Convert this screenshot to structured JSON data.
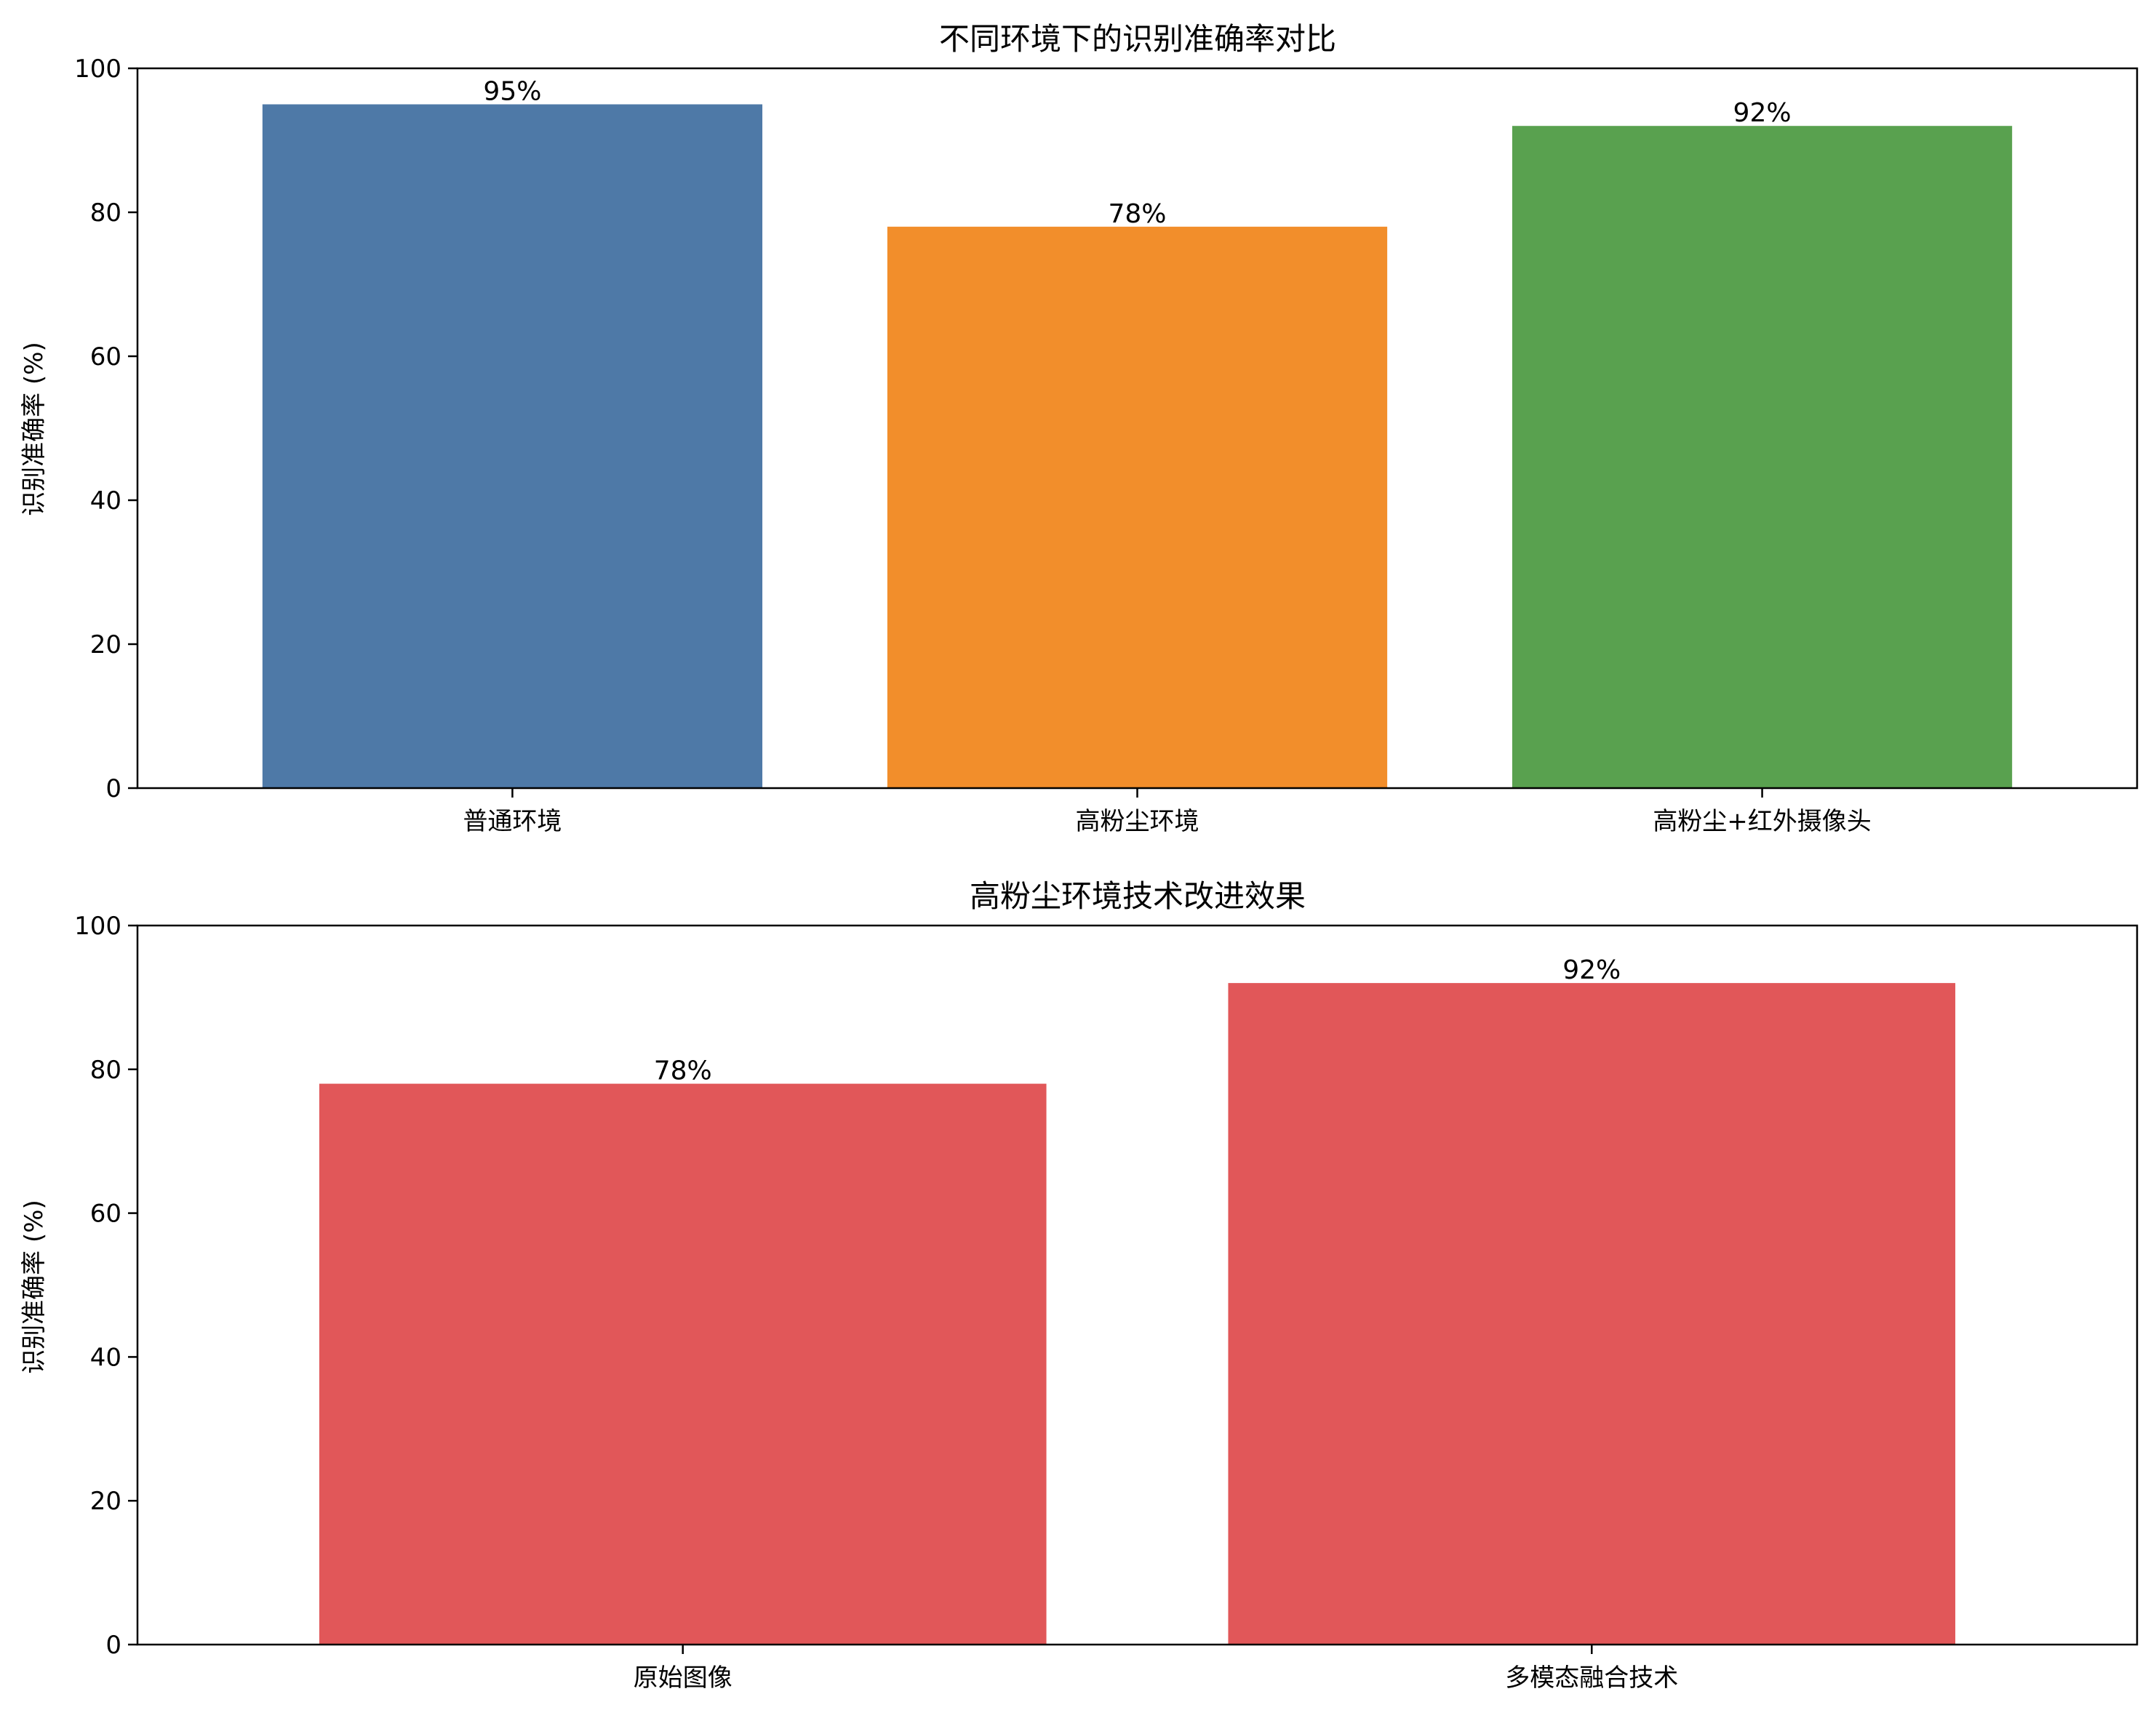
{
  "chart_data": [
    {
      "type": "bar",
      "title": "不同环境下的识别准确率对比",
      "xlabel": "",
      "ylabel": "识别准确率 (%)",
      "ylim": [
        0,
        100
      ],
      "yticks": [
        0,
        20,
        40,
        60,
        80,
        100
      ],
      "grid": false,
      "categories": [
        "普通环境",
        "高粉尘环境",
        "高粉尘+红外摄像头"
      ],
      "values": [
        95,
        78,
        92
      ],
      "value_labels": [
        "95%",
        "78%",
        "92%"
      ],
      "colors": [
        "#4e79a7",
        "#f28e2b",
        "#59a14f"
      ]
    },
    {
      "type": "bar",
      "title": "高粉尘环境技术改进效果",
      "xlabel": "",
      "ylabel": "识别准确率 (%)",
      "ylim": [
        0,
        100
      ],
      "yticks": [
        0,
        20,
        40,
        60,
        80,
        100
      ],
      "grid": false,
      "categories": [
        "原始图像",
        "多模态融合技术"
      ],
      "values": [
        78,
        92
      ],
      "value_labels": [
        "78%",
        "92%"
      ],
      "colors": [
        "#e15759",
        "#e15759"
      ]
    }
  ]
}
